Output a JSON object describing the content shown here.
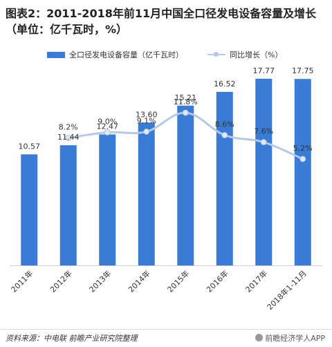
{
  "chart_data": {
    "type": "bar",
    "title": "图表2：2011-2018年前11月中国全口径发电设备容量及增长（单位：亿千瓦时，%）",
    "categories": [
      "2011年",
      "2012年",
      "2013年",
      "2014年",
      "2015年",
      "2016年",
      "2017年",
      "2018年1-11月"
    ],
    "series": [
      {
        "name": "全口径发电设备容量（亿千瓦时）",
        "type": "bar",
        "color": "#3a7bd5",
        "values": [
          10.57,
          11.44,
          12.47,
          13.6,
          15.21,
          16.52,
          17.77,
          17.75
        ]
      },
      {
        "name": "同比增长（%）",
        "type": "line",
        "color": "#b3c9e6",
        "marker_color": "#dfe9f5",
        "values": [
          null,
          8.2,
          9.0,
          9.1,
          11.8,
          8.6,
          7.6,
          5.2
        ]
      }
    ],
    "bar_labels": [
      "10.57",
      "11.44",
      "12.47",
      "13.60",
      "15.21",
      "16.52",
      "17.77",
      "17.75"
    ],
    "line_labels": [
      "",
      "8.2%",
      "9.0%",
      "9.1%",
      "11.8%",
      "8.6%",
      "7.6%",
      "5.2%"
    ],
    "bar_ylim": [
      0,
      20
    ],
    "line_ylim": [
      -10,
      20
    ],
    "legend": "top",
    "grid": false
  },
  "source_text": "资料来源：中电联  前瞻产业研究院整理",
  "logo_text": "前瞻经济学人APP"
}
